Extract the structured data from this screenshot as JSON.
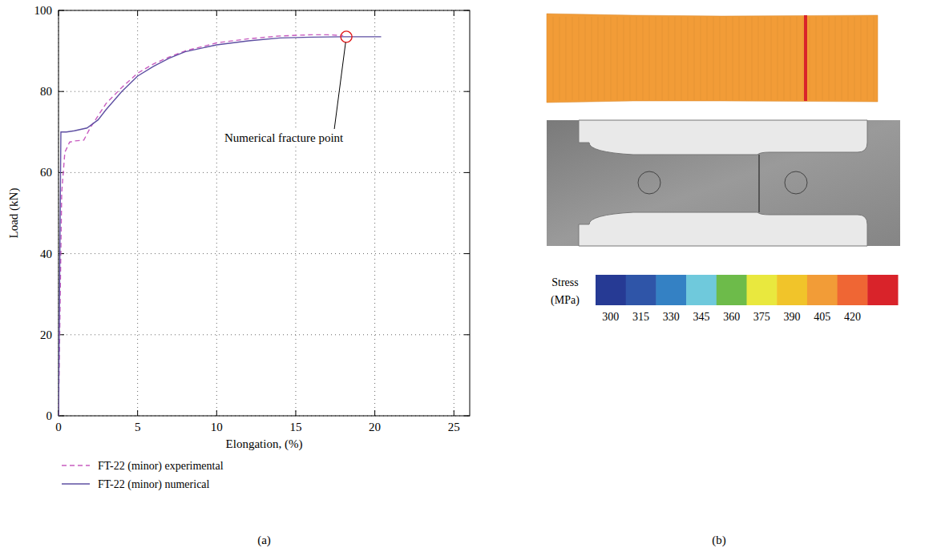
{
  "chart_data": [
    {
      "type": "line",
      "panel": "(a)",
      "xlabel": "Elongation, (%)",
      "ylabel": "Load (kN)",
      "xlim": [
        0,
        26
      ],
      "ylim": [
        0,
        100
      ],
      "xticks": [
        0,
        5,
        10,
        15,
        20,
        25
      ],
      "yticks": [
        0,
        20,
        40,
        60,
        80,
        100
      ],
      "grid": true,
      "legend": "bottom",
      "series": [
        {
          "name": "FT-22 (minor) experimental",
          "color": "#c85cc0",
          "line_style": "dashed",
          "x": [
            0,
            0.2,
            0.4,
            0.7,
            1,
            1.6,
            2,
            2.5,
            3,
            4,
            5,
            6,
            7,
            8,
            10,
            12,
            14,
            16,
            17,
            18
          ],
          "values": [
            0,
            55,
            65,
            67.5,
            67.8,
            68,
            71,
            74,
            77,
            81,
            84.5,
            86.8,
            88.5,
            90,
            92,
            93,
            93.7,
            94,
            94,
            93.8
          ]
        },
        {
          "name": "FT-22 (minor) numerical",
          "color": "#5e4fa2",
          "line_style": "solid",
          "x": [
            0,
            0.15,
            0.5,
            1,
            1.8,
            2.5,
            3,
            4,
            5,
            6,
            7,
            8,
            10,
            12,
            14,
            16,
            18,
            20.4
          ],
          "values": [
            0,
            70,
            70,
            70.3,
            71,
            73,
            75.5,
            80,
            83.8,
            86.2,
            88.2,
            89.8,
            91.5,
            92.5,
            93.2,
            93.4,
            93.5,
            93.5
          ]
        }
      ],
      "annotations": [
        {
          "text": "Numerical fracture point",
          "x": 18.2,
          "y": 93.5
        }
      ]
    },
    {
      "type": "contour-image",
      "panel": "(b)",
      "colorbar": {
        "title": [
          "Stress",
          "(MPa)"
        ],
        "range": [
          292.5,
          442.5
        ],
        "ticks": [
          300,
          315,
          330,
          345,
          360,
          375,
          390,
          405,
          420
        ],
        "colors": [
          "#263a94",
          "#2f55a8",
          "#3481c4",
          "#6fc9dc",
          "#6dbb4a",
          "#e9e83e",
          "#f1c42a",
          "#f29c37",
          "#ef6634",
          "#d9232a"
        ]
      },
      "specimen_stress": 400,
      "fracture_line_stress": 435
    }
  ]
}
